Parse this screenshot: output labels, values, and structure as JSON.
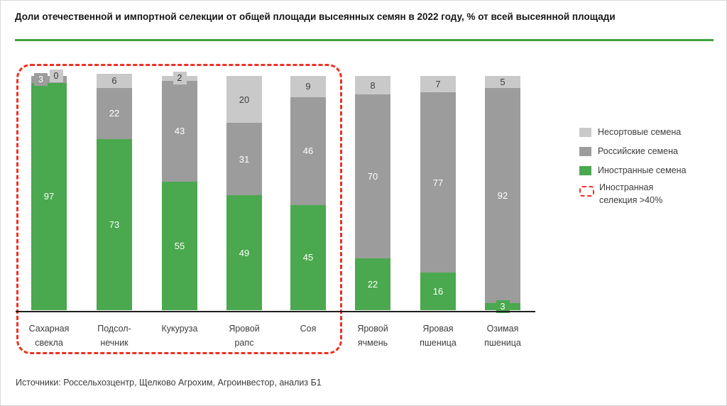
{
  "title": "Доли отечественной и импортной селекции от общей площади высеянных семян в 2022 году, % от всей высеянной площади",
  "source": "Источники: Россельхозцентр, Щелково Агрохим, Агроинвестор, анализ Б1",
  "colors": {
    "foreign_green": "#4aa84e",
    "russian_gray": "#9c9c9c",
    "unsorted_light_gray": "#c9c9c9",
    "highlight_red": "#ee3124",
    "title_rule_green": "#3fa23f",
    "axis_black": "#1f1f1f"
  },
  "legend": {
    "items": [
      {
        "label": "Несортовые семена",
        "color": "#c9c9c9",
        "type": "swatch"
      },
      {
        "label": "Российские семена",
        "color": "#9c9c9c",
        "type": "swatch"
      },
      {
        "label": "Иностранные семена",
        "color": "#4aa84e",
        "type": "swatch"
      },
      {
        "label": "Иностранная селекция >40%",
        "color": "#ee3124",
        "type": "dashed-box"
      }
    ]
  },
  "chart_data": {
    "type": "bar",
    "stacked": true,
    "unit": "% от всей высеянной площади",
    "year": "2022",
    "categories": [
      "Сахарная свекла",
      "Подсол-нечник",
      "Кукуруза",
      "Яровой рапс",
      "Соя",
      "Яровой ячмень",
      "Яровая пшеница",
      "Озимая пшеница"
    ],
    "category_lines": [
      [
        "Сахарная",
        "свекла"
      ],
      [
        "Подсол-",
        "нечник"
      ],
      [
        "Кукуруза"
      ],
      [
        "Яровой",
        "рапс"
      ],
      [
        "Соя"
      ],
      [
        "Яровой",
        "ячмень"
      ],
      [
        "Яровая",
        "пшеница"
      ],
      [
        "Озимая",
        "пшеница"
      ]
    ],
    "series": [
      {
        "name": "Иностранные семена",
        "color": "#4aa84e",
        "label_color": "#ffffff",
        "values": [
          97,
          73,
          55,
          49,
          45,
          22,
          16,
          3
        ]
      },
      {
        "name": "Российские семена",
        "color": "#9c9c9c",
        "label_color": "#ffffff",
        "values": [
          3,
          22,
          43,
          31,
          46,
          70,
          77,
          92
        ]
      },
      {
        "name": "Несортовые семена",
        "color": "#c9c9c9",
        "label_color": "#3f3f3f",
        "values": [
          0,
          6,
          2,
          20,
          9,
          8,
          7,
          5
        ]
      }
    ],
    "ylim": [
      0,
      100
    ],
    "grid": false,
    "legend_position": "right",
    "highlight_box": {
      "label": "Иностранная селекция >40%",
      "categories_covered": [
        "Сахарная свекла",
        "Подсол-нечник",
        "Кукуруза",
        "Яровой рапс",
        "Соя"
      ]
    }
  }
}
